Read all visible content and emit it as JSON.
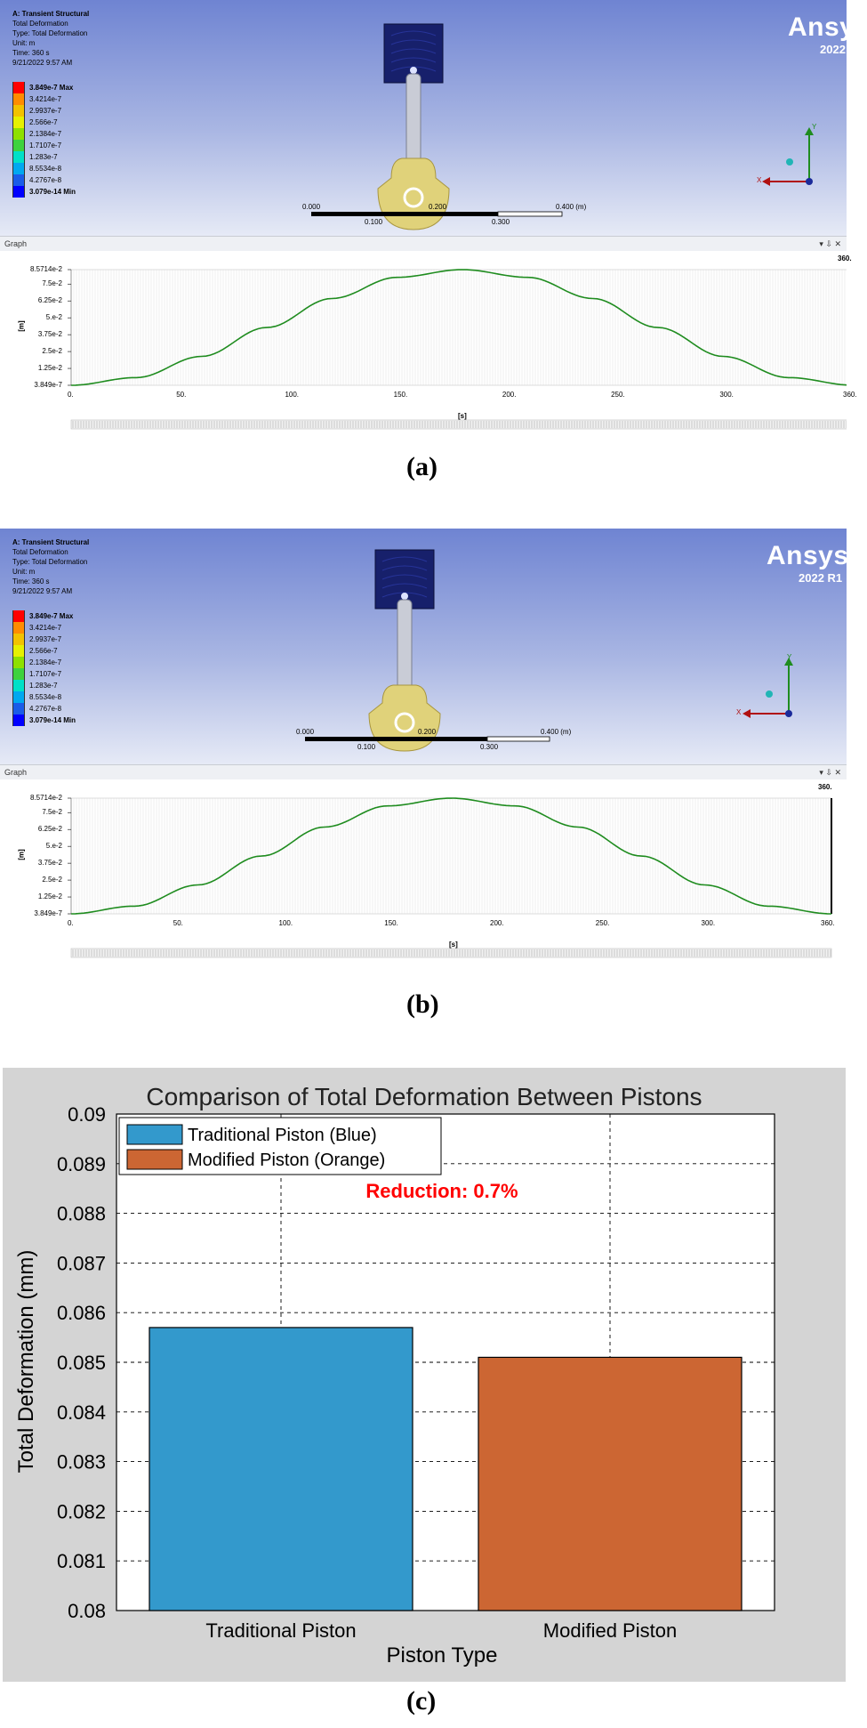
{
  "ansys_panels": [
    {
      "id": "a",
      "info_lines": [
        "A: Transient Structural",
        "Total Deformation",
        "Type: Total Deformation",
        "Unit: m",
        "Time: 360 s",
        "9/21/2022 9:57 AM"
      ],
      "legend": [
        "3.849e-7 Max",
        "3.4214e-7",
        "2.9937e-7",
        "2.566e-7",
        "2.1384e-7",
        "1.7107e-7",
        "1.283e-7",
        "8.5534e-8",
        "4.2767e-8",
        "3.079e-14 Min"
      ],
      "scale_top": [
        "0.000",
        "0.200",
        "0.400 (m)"
      ],
      "scale_bottom": [
        "0.100",
        "0.300"
      ],
      "axis_x": "X",
      "axis_y": "Y",
      "graph_title": "Graph",
      "graph_controls": "▾ ⇩ ✕",
      "y_ticks": [
        "8.5714e-2",
        "7.5e-2",
        "6.25e-2",
        "5.e-2",
        "3.75e-2",
        "2.5e-2",
        "1.25e-2",
        "3.849e-7"
      ],
      "y_unit": "[m]",
      "x_ticks": [
        "0.",
        "50.",
        "100.",
        "150.",
        "200.",
        "250.",
        "300.",
        "360."
      ],
      "x_unit": "[s]",
      "end_label": "360."
    },
    {
      "id": "b",
      "info_lines": [
        "A: Transient Structural",
        "Total Deformation",
        "Type: Total Deformation",
        "Unit: m",
        "Time: 360 s",
        "9/21/2022 9:57 AM"
      ],
      "legend": [
        "3.849e-7 Max",
        "3.4214e-7",
        "2.9937e-7",
        "2.566e-7",
        "2.1384e-7",
        "1.7107e-7",
        "1.283e-7",
        "8.5534e-8",
        "4.2767e-8",
        "3.079e-14 Min"
      ],
      "scale_top": [
        "0.000",
        "0.200",
        "0.400 (m)"
      ],
      "scale_bottom": [
        "0.100",
        "0.300"
      ],
      "axis_x": "X",
      "axis_y": "Y",
      "graph_title": "Graph",
      "graph_controls": "▾ ⇩ ✕",
      "y_ticks": [
        "8.5714e-2",
        "7.5e-2",
        "6.25e-2",
        "5.e-2",
        "3.75e-2",
        "2.5e-2",
        "1.25e-2",
        "3.849e-7"
      ],
      "y_unit": "[m]",
      "x_ticks": [
        "0.",
        "50.",
        "100.",
        "150.",
        "200.",
        "250.",
        "300.",
        "360."
      ],
      "x_unit": "[s]",
      "end_label": "360."
    }
  ],
  "brand": {
    "name": "Ansys",
    "version": "2022 R1"
  },
  "legend_colors": [
    "#ff0000",
    "#ff8c00",
    "#f2c200",
    "#e6f000",
    "#8ee000",
    "#3ed23e",
    "#00e0c8",
    "#00a8f0",
    "#1a5ce8",
    "#0000ff"
  ],
  "colors": {
    "piston": "#17206b",
    "crank": "#e0d27a",
    "rod": "#c9ccd6",
    "curve": "#1f8c1f",
    "bar_blue": "#3399cc",
    "bar_orange": "#cc6633",
    "reduction": "#ff0000"
  },
  "captions": [
    "(a)",
    "(b)",
    "(c)"
  ],
  "chart_data": [
    {
      "type": "line",
      "panel": "a",
      "x": [
        0,
        30,
        60,
        90,
        120,
        150,
        180,
        210,
        240,
        270,
        300,
        330,
        360
      ],
      "y": [
        4e-07,
        0.0057,
        0.0214,
        0.0428,
        0.0643,
        0.08,
        0.08571,
        0.08,
        0.0643,
        0.0428,
        0.0214,
        0.0057,
        4e-07
      ],
      "xlabel": "[s]",
      "ylabel": "[m]",
      "xlim": [
        0,
        360
      ],
      "ylim": [
        3.849e-07,
        0.085714
      ]
    },
    {
      "type": "line",
      "panel": "b",
      "x": [
        0,
        30,
        60,
        90,
        120,
        150,
        180,
        210,
        240,
        270,
        300,
        330,
        360
      ],
      "y": [
        4e-07,
        0.0057,
        0.0214,
        0.0428,
        0.0643,
        0.08,
        0.08571,
        0.08,
        0.0643,
        0.0428,
        0.0214,
        0.0057,
        4e-07
      ],
      "xlabel": "[s]",
      "ylabel": "[m]",
      "xlim": [
        0,
        360
      ],
      "ylim": [
        3.849e-07,
        0.085714
      ]
    },
    {
      "type": "bar",
      "panel": "c",
      "title": "Comparison of Total Deformation Between Pistons",
      "categories": [
        "Traditional Piston",
        "Modified Piston"
      ],
      "values": [
        0.0857,
        0.0851
      ],
      "xlabel": "Piston Type",
      "ylabel": "Total Deformation (mm)",
      "ylim": [
        0.08,
        0.09
      ],
      "y_ticks": [
        "0.08",
        "0.081",
        "0.082",
        "0.083",
        "0.084",
        "0.085",
        "0.086",
        "0.087",
        "0.088",
        "0.089",
        "0.09"
      ],
      "legend": [
        "Traditional Piston (Blue)",
        "Modified Piston (Orange)"
      ],
      "legend_position": "top-left",
      "annotation": "Reduction: 0.7%",
      "grid": true
    }
  ]
}
